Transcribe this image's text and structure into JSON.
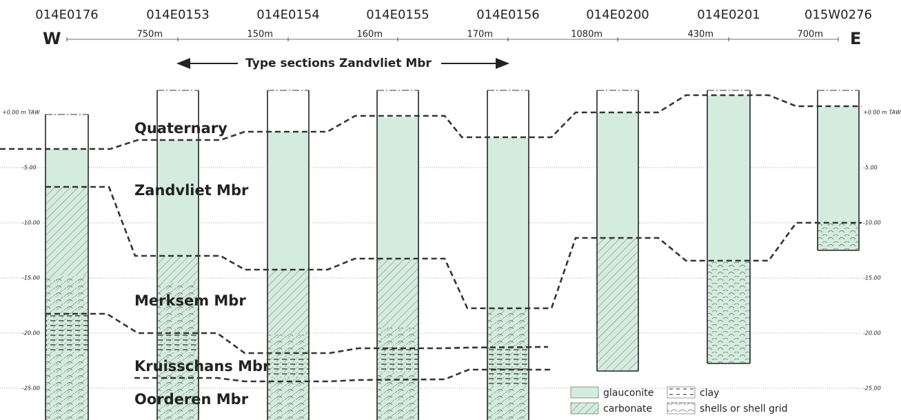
{
  "header": {
    "west": "W",
    "east": "E",
    "boreholes": [
      "014E0176",
      "014E0153",
      "014E0154",
      "014E0155",
      "014E0156",
      "014E0200",
      "014E0201",
      "015W0276"
    ],
    "distances": [
      "750m",
      "150m",
      "160m",
      "170m",
      "1080m",
      "430m",
      "700m"
    ],
    "type_section": "Type sections Zandvliet Mbr"
  },
  "depth_axis": {
    "ticks": [
      "+0.00 m TAW",
      "-5.00",
      "-10.00",
      "-15.00",
      "-20.00",
      "-25.00"
    ]
  },
  "units": [
    "Quaternary",
    "Zandvliet Mbr",
    "Merksem Mbr",
    "Kruisschans Mbr",
    "Oorderen Mbr"
  ],
  "legend": [
    "glauconite",
    "carbonate",
    "clay",
    "shells or shell grid"
  ]
}
